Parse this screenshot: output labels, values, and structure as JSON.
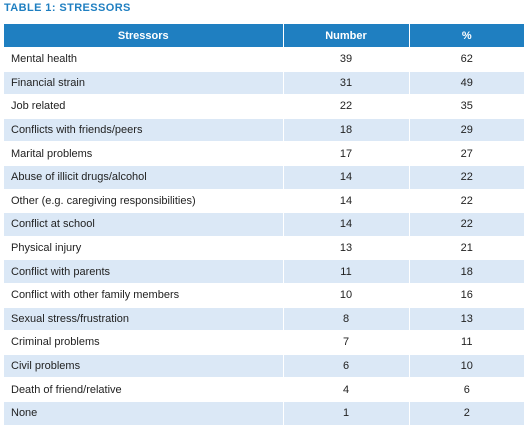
{
  "caption": "TABLE 1: STRESSORS",
  "table": {
    "headers": [
      "Stressors",
      "Number",
      "%"
    ],
    "rows": [
      [
        "Mental health",
        "39",
        "62"
      ],
      [
        "Financial strain",
        "31",
        "49"
      ],
      [
        "Job related",
        "22",
        "35"
      ],
      [
        "Conflicts with friends/peers",
        "18",
        "29"
      ],
      [
        "Marital problems",
        "17",
        "27"
      ],
      [
        "Abuse of illicit drugs/alcohol",
        "14",
        "22"
      ],
      [
        "Other (e.g. caregiving responsibilities)",
        "14",
        "22"
      ],
      [
        "Conflict at school",
        "14",
        "22"
      ],
      [
        "Physical injury",
        "13",
        "21"
      ],
      [
        "Conflict with parents",
        "11",
        "18"
      ],
      [
        "Conflict with other family members",
        "10",
        "16"
      ],
      [
        "Sexual stress/frustration",
        "8",
        "13"
      ],
      [
        "Criminal problems",
        "7",
        "11"
      ],
      [
        "Civil problems",
        "6",
        "10"
      ],
      [
        "Death of friend/relative",
        "4",
        "6"
      ],
      [
        "None",
        "1",
        "2"
      ]
    ]
  },
  "colors": {
    "header_bg": "#1f7fc1",
    "stripe_bg": "#dbe8f6",
    "caption": "#1f7fc1"
  }
}
